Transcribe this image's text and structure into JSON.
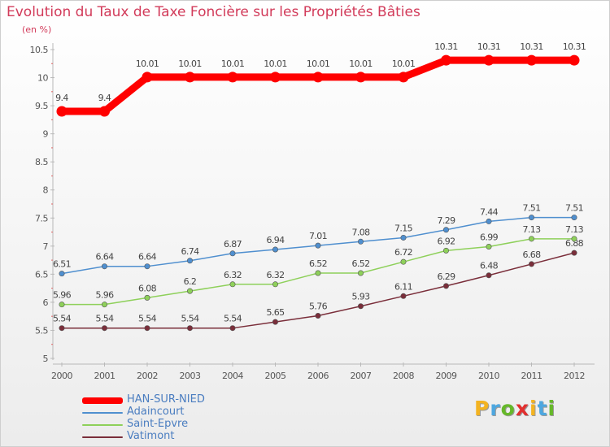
{
  "header": {
    "title": "Evolution du Taux de Taxe Foncière sur les Propriétés Bâties",
    "subtitle": "(en %)"
  },
  "brand": {
    "name": "Proxiti",
    "letters": [
      "P",
      "r",
      "o",
      "x",
      "i",
      "t",
      "i"
    ]
  },
  "chart_data": {
    "type": "line",
    "title": "Evolution du Taux de Taxe Foncière sur les Propriétés Bâties",
    "ylabel": "(en %)",
    "xlabel": "",
    "ylim": [
      5,
      10.5
    ],
    "yticks": [
      "5",
      "5.5",
      "6",
      "6.5",
      "7",
      "7.5",
      "8",
      "8.5",
      "9",
      "9.5",
      "10",
      "10.5"
    ],
    "categories": [
      "2000",
      "2001",
      "2002",
      "2003",
      "2004",
      "2005",
      "2006",
      "2007",
      "2008",
      "2009",
      "2010",
      "2011",
      "2012"
    ],
    "legend_position": "bottom-left",
    "grid": false,
    "series": [
      {
        "name": "HAN-SUR-NIED",
        "color": "#ff0000",
        "values": [
          9.4,
          9.4,
          10.01,
          10.01,
          10.01,
          10.01,
          10.01,
          10.01,
          10.01,
          10.31,
          10.31,
          10.31,
          10.31
        ],
        "labels": [
          "9.4",
          "9.4",
          "10.01",
          "10.01",
          "10.01",
          "10.01",
          "10.01",
          "10.01",
          "10.01",
          "10.31",
          "10.31",
          "10.31",
          "10.31"
        ]
      },
      {
        "name": "Adaincourt",
        "color": "#4f8fcf",
        "values": [
          6.51,
          6.64,
          6.64,
          6.74,
          6.87,
          6.94,
          7.01,
          7.08,
          7.15,
          7.29,
          7.44,
          7.51,
          7.51
        ],
        "labels": [
          "6.51",
          "6.64",
          "6.64",
          "6.74",
          "6.87",
          "6.94",
          "7.01",
          "7.08",
          "7.15",
          "7.29",
          "7.44",
          "7.51",
          "7.51"
        ]
      },
      {
        "name": "Saint-Epvre",
        "color": "#8ed05a",
        "values": [
          5.96,
          5.96,
          6.08,
          6.2,
          6.32,
          6.32,
          6.52,
          6.52,
          6.72,
          6.92,
          6.99,
          7.13,
          7.13
        ],
        "labels": [
          "5.96",
          "5.96",
          "6.08",
          "6.2",
          "6.32",
          "6.32",
          "6.52",
          "6.52",
          "6.72",
          "6.92",
          "6.99",
          "7.13",
          "7.13"
        ]
      },
      {
        "name": "Vatimont",
        "color": "#7a2e3a",
        "values": [
          5.54,
          5.54,
          5.54,
          5.54,
          5.54,
          5.65,
          5.76,
          5.93,
          6.11,
          6.29,
          6.48,
          6.68,
          6.88
        ],
        "labels": [
          "5.54",
          "5.54",
          "5.54",
          "5.54",
          "5.54",
          "5.65",
          "5.76",
          "5.93",
          "6.11",
          "6.29",
          "6.48",
          "6.68",
          "6.88"
        ]
      }
    ]
  }
}
